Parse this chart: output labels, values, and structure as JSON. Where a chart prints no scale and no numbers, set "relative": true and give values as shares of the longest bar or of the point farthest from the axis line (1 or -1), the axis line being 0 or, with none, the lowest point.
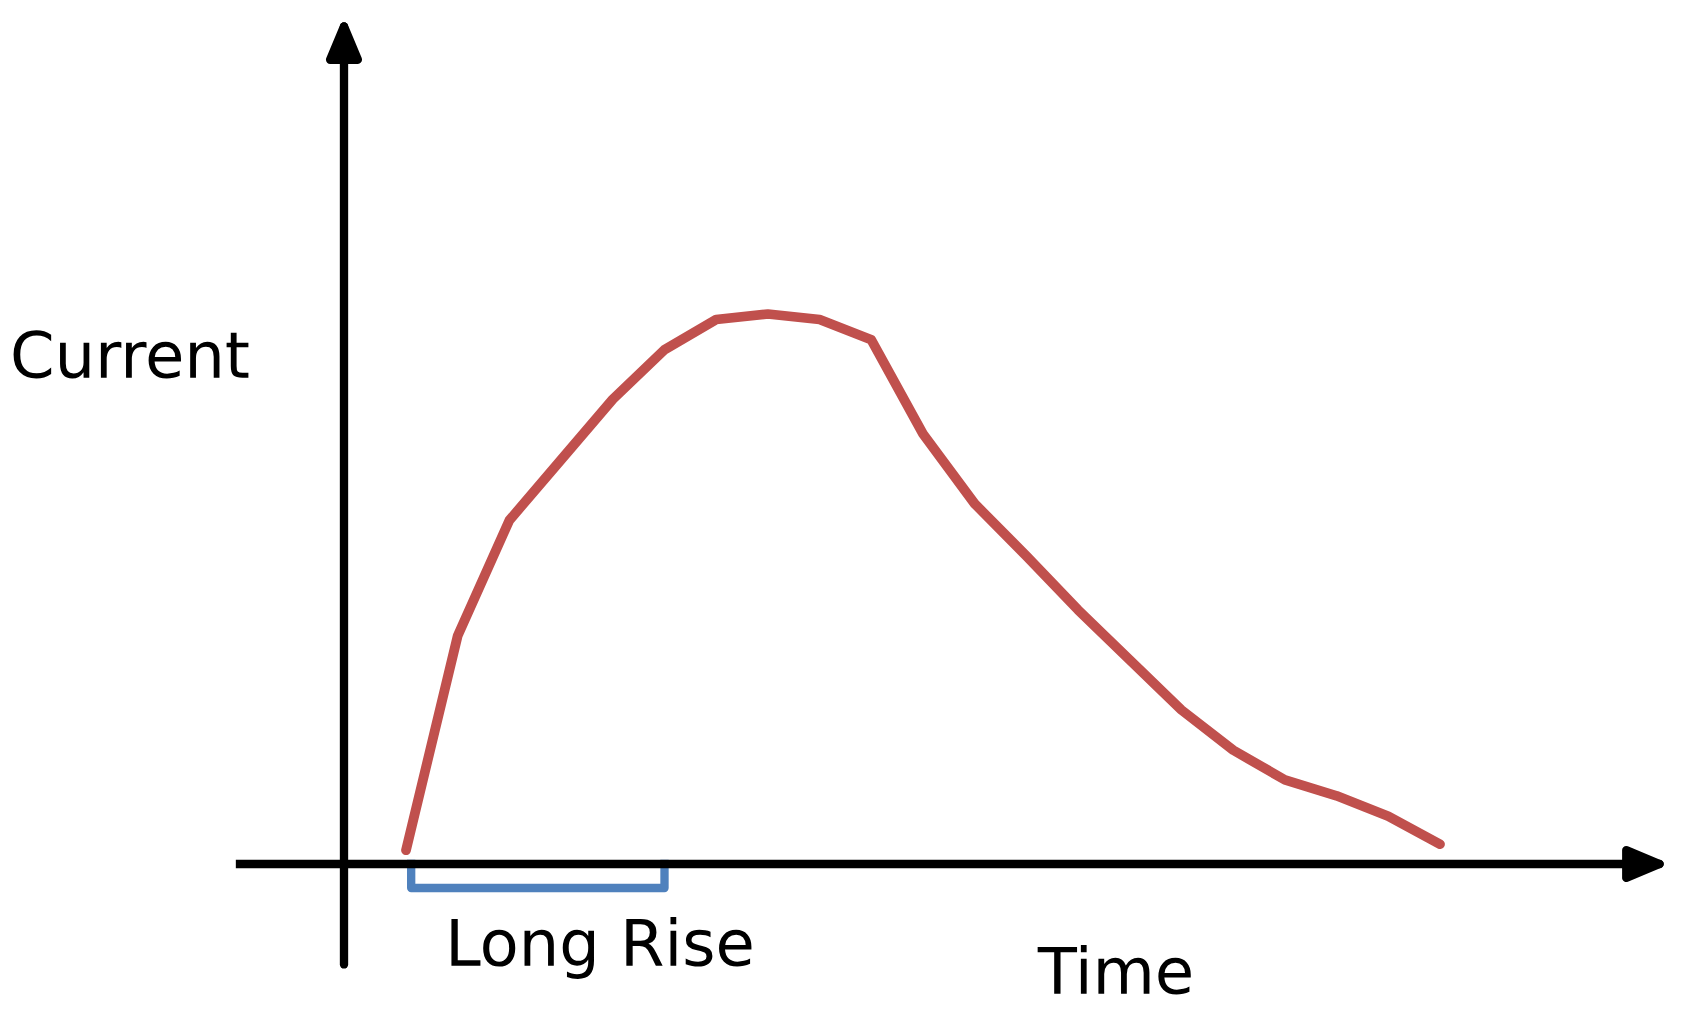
{
  "chart_data": {
    "type": "line",
    "relative": true,
    "xlabel": "Time",
    "ylabel": "Current",
    "categories": [
      null,
      null,
      null,
      null,
      null,
      null,
      null,
      null,
      null,
      null,
      null,
      null,
      null,
      null,
      null,
      null,
      null,
      null,
      null,
      null,
      null
    ],
    "series": [
      {
        "color": "#c0504d",
        "values": [
          0.025,
          0.415,
          0.625,
          0.735,
          0.845,
          0.935,
          0.99,
          1,
          0.99,
          0.953,
          0.782,
          0.655,
          0.56,
          0.462,
          0.371,
          0.28,
          0.207,
          0.153,
          0.124,
          0.087,
          0.036
        ]
      }
    ],
    "annotations": [
      "Long Rise"
    ],
    "marker": "none",
    "line_style": "solid"
  }
}
